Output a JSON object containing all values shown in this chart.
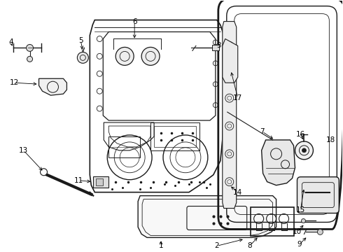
{
  "background_color": "#ffffff",
  "line_color": "#1a1a1a",
  "fig_width": 4.9,
  "fig_height": 3.6,
  "dpi": 100
}
